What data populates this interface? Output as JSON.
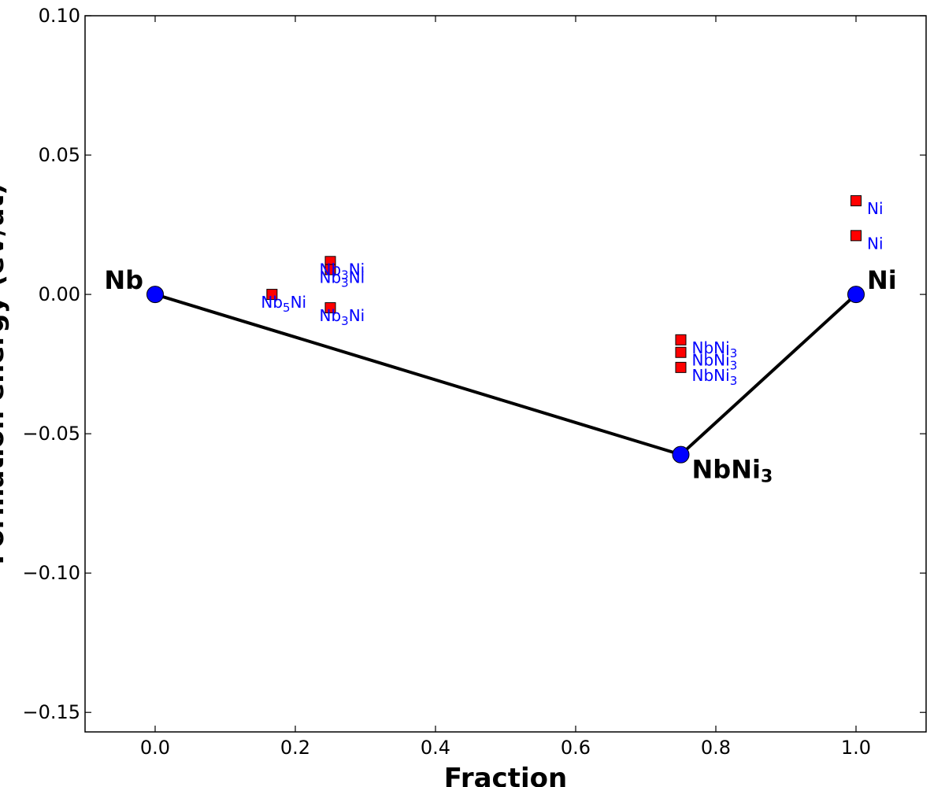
{
  "chart_data": {
    "type": "scatter",
    "title": "",
    "xlabel": "Fraction",
    "ylabel": "Formation energy (eV/at)",
    "xlim": [
      -0.1,
      1.1
    ],
    "ylim": [
      -0.157,
      0.1
    ],
    "x_ticks": [
      0.0,
      0.2,
      0.4,
      0.6,
      0.8,
      1.0
    ],
    "x_tick_labels": [
      "0.0",
      "0.2",
      "0.4",
      "0.6",
      "0.8",
      "1.0"
    ],
    "y_ticks": [
      0.1,
      0.05,
      0.0,
      -0.05,
      -0.1,
      -0.15
    ],
    "y_tick_labels": [
      "0.10",
      "0.05",
      "0.00",
      "−0.05",
      "−0.10",
      "−0.15"
    ],
    "grid": false,
    "hull_line_color": "#000000",
    "series": [
      {
        "kind": "stable",
        "marker": "circle",
        "color": "#0000ff",
        "points": [
          {
            "x": 0.0,
            "y": 0.0,
            "base": "Nb",
            "sub": "",
            "label_pos": "left-above"
          },
          {
            "x": 0.75,
            "y": -0.0575,
            "base": "NbNi",
            "sub": "3",
            "label_pos": "right-below"
          },
          {
            "x": 1.0,
            "y": 0.0,
            "base": "Ni",
            "sub": "",
            "label_pos": "right-above"
          }
        ]
      },
      {
        "kind": "unstable",
        "marker": "square",
        "color": "#ff0000",
        "points": [
          {
            "x": 0.1667,
            "y": 0.0,
            "base": "Nb",
            "sub": "5",
            "tail": "Ni"
          },
          {
            "x": 0.25,
            "y": 0.0118,
            "base": "Nb",
            "sub": "3",
            "tail": "Ni"
          },
          {
            "x": 0.25,
            "y": 0.0089,
            "base": "Nb",
            "sub": "3",
            "tail": "Ni"
          },
          {
            "x": 0.25,
            "y": -0.0048,
            "base": "Nb",
            "sub": "3",
            "tail": "Ni"
          },
          {
            "x": 0.75,
            "y": -0.0163,
            "base": "NbNi",
            "sub": "3",
            "tail": ""
          },
          {
            "x": 0.75,
            "y": -0.0208,
            "base": "NbNi",
            "sub": "3",
            "tail": ""
          },
          {
            "x": 0.75,
            "y": -0.0262,
            "base": "NbNi",
            "sub": "3",
            "tail": ""
          },
          {
            "x": 1.0,
            "y": 0.0336,
            "base": "Ni",
            "sub": "",
            "tail": ""
          },
          {
            "x": 1.0,
            "y": 0.0211,
            "base": "Ni",
            "sub": "",
            "tail": ""
          }
        ]
      }
    ]
  }
}
